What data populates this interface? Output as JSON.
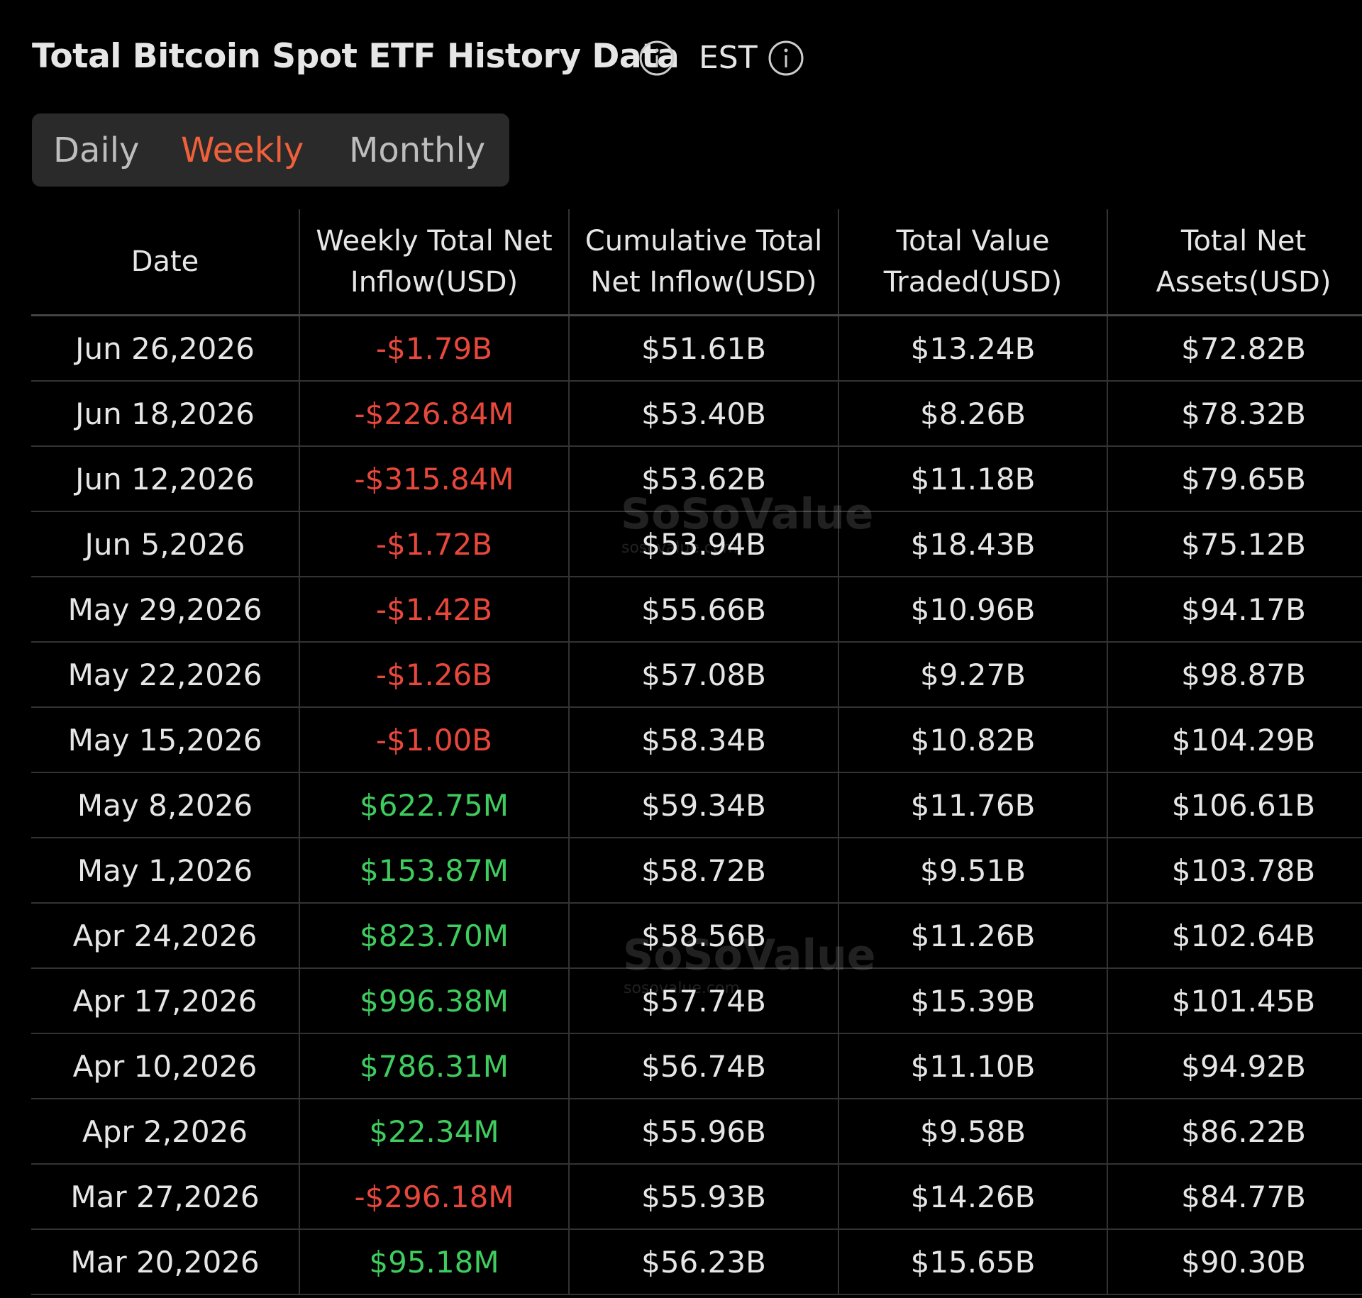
{
  "header": {
    "title": "Total Bitcoin Spot ETF History Data",
    "timezone": "EST"
  },
  "tabs": [
    "Daily",
    "Weekly",
    "Monthly"
  ],
  "watermark": {
    "name": "SoSoValue",
    "site": "sosovalue.com"
  },
  "table": {
    "columns": [
      "Date",
      "Weekly Total Net Inflow(USD)",
      "Cumulative Total Net Inflow(USD)",
      "Total Value Traded(USD)",
      "Total Net Assets(USD)"
    ],
    "rows": [
      [
        "Jun 26,2026",
        "-$1.79B",
        "$51.61B",
        "$13.24B",
        "$72.82B"
      ],
      [
        "Jun 18,2026",
        "-$226.84M",
        "$53.40B",
        "$8.26B",
        "$78.32B"
      ],
      [
        "Jun 12,2026",
        "-$315.84M",
        "$53.62B",
        "$11.18B",
        "$79.65B"
      ],
      [
        "Jun 5,2026",
        "-$1.72B",
        "$53.94B",
        "$18.43B",
        "$75.12B"
      ],
      [
        "May 29,2026",
        "-$1.42B",
        "$55.66B",
        "$10.96B",
        "$94.17B"
      ],
      [
        "May 22,2026",
        "-$1.26B",
        "$57.08B",
        "$9.27B",
        "$98.87B"
      ],
      [
        "May 15,2026",
        "-$1.00B",
        "$58.34B",
        "$10.82B",
        "$104.29B"
      ],
      [
        "May 8,2026",
        "$622.75M",
        "$59.34B",
        "$11.76B",
        "$106.61B"
      ],
      [
        "May 1,2026",
        "$153.87M",
        "$58.72B",
        "$9.51B",
        "$103.78B"
      ],
      [
        "Apr 24,2026",
        "$823.70M",
        "$58.56B",
        "$11.26B",
        "$102.64B"
      ],
      [
        "Apr 17,2026",
        "$996.38M",
        "$57.74B",
        "$15.39B",
        "$101.45B"
      ],
      [
        "Apr 10,2026",
        "$786.31M",
        "$56.74B",
        "$11.10B",
        "$94.92B"
      ],
      [
        "Apr 2,2026",
        "$22.34M",
        "$55.96B",
        "$9.58B",
        "$86.22B"
      ],
      [
        "Mar 27,2026",
        "-$296.18M",
        "$55.93B",
        "$14.26B",
        "$84.77B"
      ],
      [
        "Mar 20,2026",
        "$95.18M",
        "$56.23B",
        "$15.65B",
        "$90.30B"
      ]
    ]
  }
}
